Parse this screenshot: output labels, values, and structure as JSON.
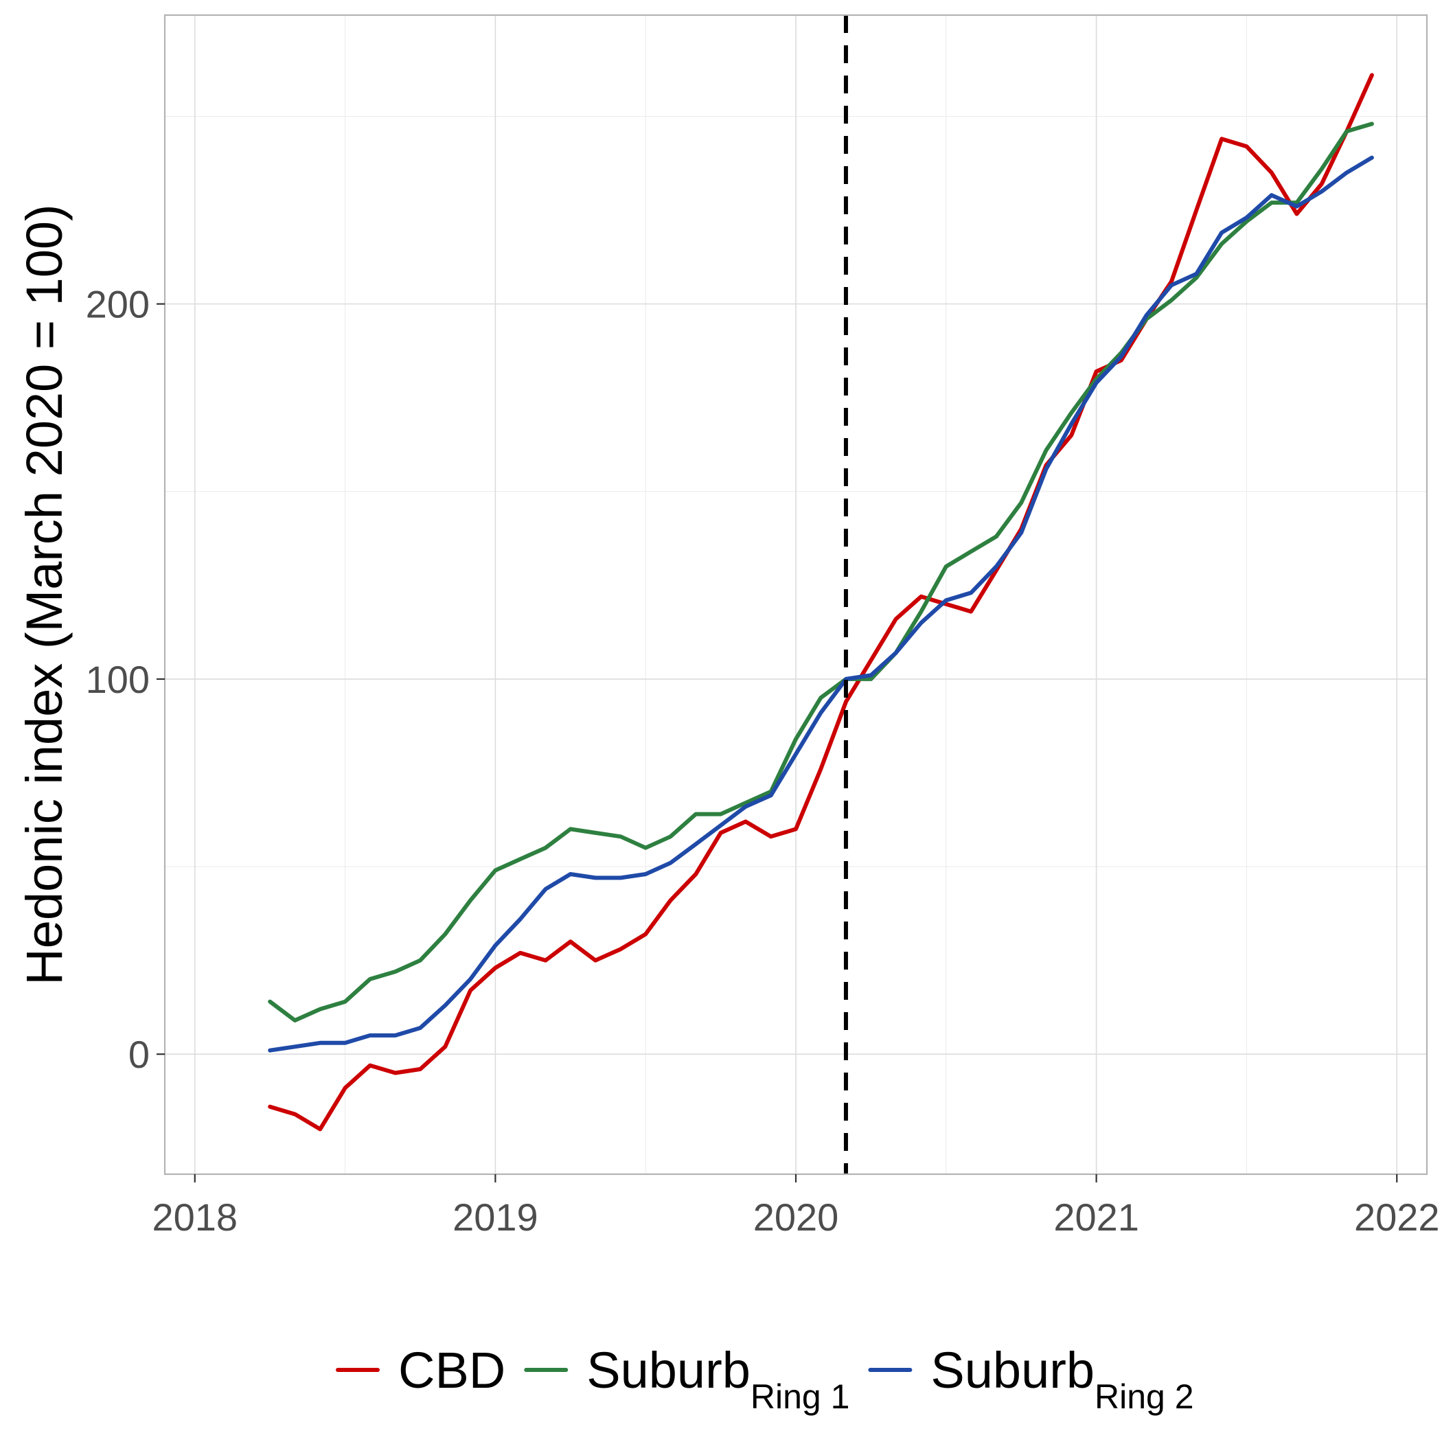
{
  "chart_data": {
    "type": "line",
    "title": "",
    "xlabel": "",
    "ylabel": "Hedonic index (March 2020 = 100)",
    "xlim": [
      2017.9,
      2022.1
    ],
    "ylim": [
      -32,
      277
    ],
    "x_ticks": [
      2018,
      2019,
      2020,
      2021,
      2022
    ],
    "y_ticks": [
      0,
      100,
      200
    ],
    "grid": true,
    "legend_position": "bottom",
    "reference_line": {
      "x": 2020.1667,
      "style": "dashed",
      "color": "#000000"
    },
    "x": [
      2018.25,
      2018.333,
      2018.417,
      2018.5,
      2018.583,
      2018.667,
      2018.75,
      2018.833,
      2018.917,
      2019.0,
      2019.083,
      2019.167,
      2019.25,
      2019.333,
      2019.417,
      2019.5,
      2019.583,
      2019.667,
      2019.75,
      2019.833,
      2019.917,
      2020.0,
      2020.083,
      2020.167,
      2020.25,
      2020.333,
      2020.417,
      2020.5,
      2020.583,
      2020.667,
      2020.75,
      2020.833,
      2020.917,
      2021.0,
      2021.083,
      2021.167,
      2021.25,
      2021.333,
      2021.417,
      2021.5,
      2021.583,
      2021.667,
      2021.75,
      2021.833,
      2021.917
    ],
    "series": [
      {
        "name": "CBD",
        "color": "#cc0000",
        "values": [
          -14,
          -16,
          -20,
          -9,
          -3,
          -5,
          -4,
          2,
          17,
          23,
          27,
          25,
          30,
          25,
          28,
          32,
          41,
          48,
          59,
          62,
          58,
          60,
          76,
          94,
          105,
          116,
          122,
          120,
          118,
          129,
          140,
          157,
          165,
          182,
          185,
          196,
          206,
          225,
          244,
          242,
          235,
          224,
          232,
          246,
          261
        ]
      },
      {
        "name": "Suburb_Ring 1",
        "label_main": "Suburb",
        "label_sub": "Ring 1",
        "color": "#2e8040",
        "values": [
          14,
          9,
          12,
          14,
          20,
          22,
          25,
          32,
          41,
          49,
          52,
          55,
          60,
          59,
          58,
          55,
          58,
          64,
          64,
          67,
          70,
          84,
          95,
          100,
          100,
          107,
          118,
          130,
          134,
          138,
          147,
          161,
          171,
          180,
          187,
          196,
          201,
          207,
          216,
          222,
          227,
          227,
          236,
          246,
          248
        ]
      },
      {
        "name": "Suburb_Ring 2",
        "label_main": "Suburb",
        "label_sub": "Ring 2",
        "color": "#1f4aa8",
        "values": [
          1,
          2,
          3,
          3,
          5,
          5,
          7,
          13,
          20,
          29,
          36,
          44,
          48,
          47,
          47,
          48,
          51,
          56,
          61,
          66,
          69,
          80,
          91,
          100,
          101,
          107,
          115,
          121,
          123,
          130,
          139,
          156,
          168,
          179,
          186,
          197,
          205,
          208,
          219,
          223,
          229,
          226,
          230,
          235,
          239
        ]
      }
    ]
  }
}
